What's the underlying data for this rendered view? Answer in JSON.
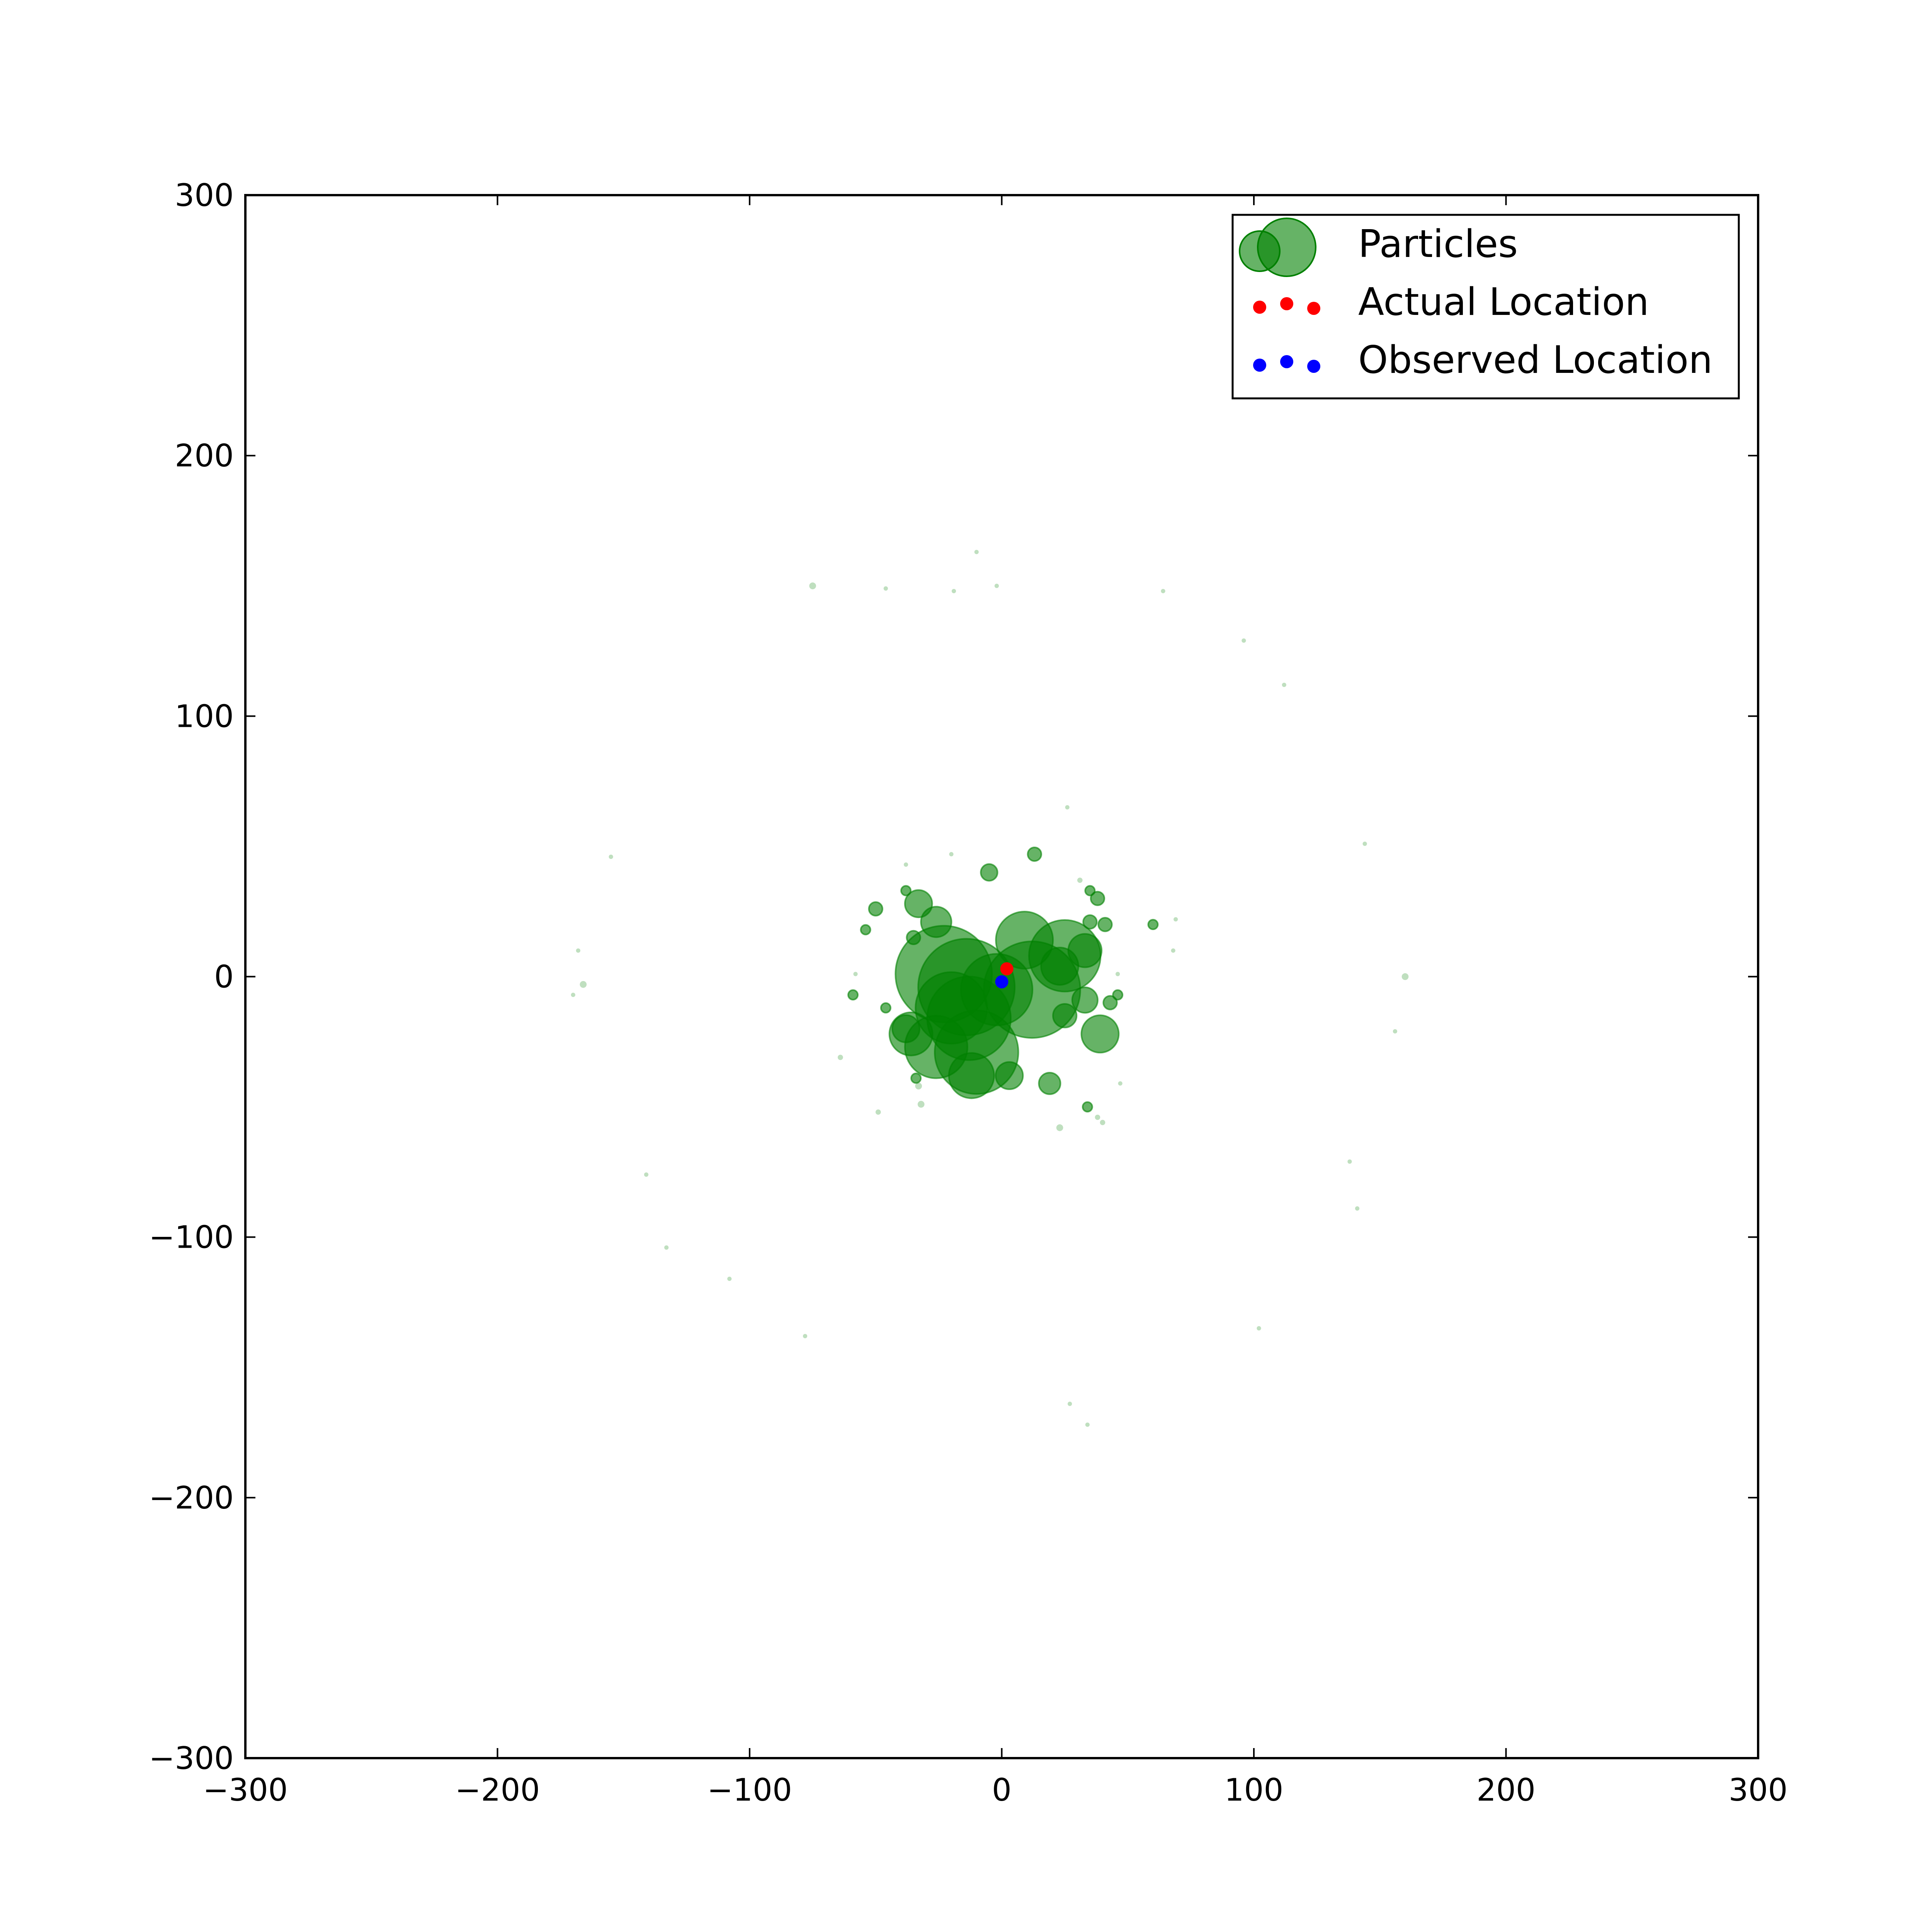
{
  "chart_data": {
    "type": "scatter",
    "title": "",
    "xlabel": "",
    "ylabel": "",
    "xlim": [
      -300,
      300
    ],
    "ylim": [
      -300,
      300
    ],
    "grid": false,
    "legend_position": "top-right",
    "x_ticks": [
      {
        "value": -300,
        "label": "−300"
      },
      {
        "value": -200,
        "label": "−200"
      },
      {
        "value": -100,
        "label": "−100"
      },
      {
        "value": 0,
        "label": "0"
      },
      {
        "value": 100,
        "label": "100"
      },
      {
        "value": 200,
        "label": "200"
      },
      {
        "value": 300,
        "label": "300"
      }
    ],
    "y_ticks": [
      {
        "value": -300,
        "label": "−300"
      },
      {
        "value": -200,
        "label": "−200"
      },
      {
        "value": -100,
        "label": "−100"
      },
      {
        "value": 0,
        "label": "0"
      },
      {
        "value": 100,
        "label": "100"
      },
      {
        "value": 200,
        "label": "200"
      },
      {
        "value": 300,
        "label": "300"
      }
    ],
    "series": [
      {
        "name": "Particles",
        "color": "#008000",
        "alpha": 0.6,
        "points": [
          {
            "x": -23,
            "y": 1,
            "w": 1.0
          },
          {
            "x": -14,
            "y": -4,
            "w": 1.0
          },
          {
            "x": 12,
            "y": -5,
            "w": 1.0
          },
          {
            "x": -13,
            "y": -16,
            "w": 0.75
          },
          {
            "x": -20,
            "y": -12,
            "w": 0.55
          },
          {
            "x": -10,
            "y": -29,
            "w": 0.75
          },
          {
            "x": -2,
            "y": -5,
            "w": 0.55
          },
          {
            "x": 25,
            "y": 8,
            "w": 0.55
          },
          {
            "x": -26,
            "y": -27,
            "w": 0.42
          },
          {
            "x": 9,
            "y": 14,
            "w": 0.35
          },
          {
            "x": -36,
            "y": -22,
            "w": 0.2
          },
          {
            "x": -12,
            "y": -38,
            "w": 0.22
          },
          {
            "x": 39,
            "y": -22,
            "w": 0.15
          },
          {
            "x": 23,
            "y": 4,
            "w": 0.15
          },
          {
            "x": 33,
            "y": 10,
            "w": 0.12
          },
          {
            "x": -26,
            "y": 21,
            "w": 0.1
          },
          {
            "x": -33,
            "y": 28,
            "w": 0.08
          },
          {
            "x": -38,
            "y": -20,
            "w": 0.08
          },
          {
            "x": 3,
            "y": -38,
            "w": 0.08
          },
          {
            "x": 33,
            "y": -9,
            "w": 0.07
          },
          {
            "x": 25,
            "y": -15,
            "w": 0.06
          },
          {
            "x": 19,
            "y": -41,
            "w": 0.05
          },
          {
            "x": -5,
            "y": 40,
            "w": 0.03
          },
          {
            "x": 13,
            "y": 47,
            "w": 0.02
          },
          {
            "x": -50,
            "y": 26,
            "w": 0.02
          },
          {
            "x": -35,
            "y": 15,
            "w": 0.02
          },
          {
            "x": -38,
            "y": 33,
            "w": 0.01
          },
          {
            "x": 38,
            "y": 30,
            "w": 0.02
          },
          {
            "x": 35,
            "y": 33,
            "w": 0.01
          },
          {
            "x": 41,
            "y": 20,
            "w": 0.02
          },
          {
            "x": 35,
            "y": 21,
            "w": 0.02
          },
          {
            "x": 43,
            "y": -10,
            "w": 0.02
          },
          {
            "x": 46,
            "y": -7,
            "w": 0.01
          },
          {
            "x": 60,
            "y": 20,
            "w": 0.01
          },
          {
            "x": -54,
            "y": 18,
            "w": 0.01
          },
          {
            "x": -59,
            "y": -7,
            "w": 0.01
          },
          {
            "x": -46,
            "y": -12,
            "w": 0.01
          },
          {
            "x": -34,
            "y": -39,
            "w": 0.01
          },
          {
            "x": -75,
            "y": 150,
            "w": 0.005
          },
          {
            "x": -166,
            "y": -3,
            "w": 0.005
          },
          {
            "x": 160,
            "y": 0,
            "w": 0.005
          },
          {
            "x": 34,
            "y": -50,
            "w": 0.01
          },
          {
            "x": 23,
            "y": -58,
            "w": 0.005
          },
          {
            "x": -33,
            "y": -42,
            "w": 0.005
          },
          {
            "x": -32,
            "y": -49,
            "w": 0.005
          },
          {
            "x": -64,
            "y": -31,
            "w": 0.003
          },
          {
            "x": -49,
            "y": -52,
            "w": 0.003
          },
          {
            "x": 38,
            "y": -54,
            "w": 0.003
          },
          {
            "x": 40,
            "y": -56,
            "w": 0.003
          },
          {
            "x": 47,
            "y": -41,
            "w": 0.002
          },
          {
            "x": 31,
            "y": 37,
            "w": 0.003
          },
          {
            "x": 26,
            "y": 65,
            "w": 0.002
          },
          {
            "x": -38,
            "y": 43,
            "w": 0.002
          },
          {
            "x": -20,
            "y": 47,
            "w": 0.002
          },
          {
            "x": 69,
            "y": 22,
            "w": 0.002
          },
          {
            "x": 68,
            "y": 10,
            "w": 0.002
          },
          {
            "x": 46,
            "y": 1,
            "w": 0.002
          },
          {
            "x": -58,
            "y": 1,
            "w": 0.002
          },
          {
            "x": -168,
            "y": 10,
            "w": 0.002
          },
          {
            "x": -170,
            "y": -7,
            "w": 0.002
          },
          {
            "x": -155,
            "y": 46,
            "w": 0.002
          },
          {
            "x": 144,
            "y": 51,
            "w": 0.002
          },
          {
            "x": 156,
            "y": -21,
            "w": 0.002
          },
          {
            "x": 138,
            "y": -71,
            "w": 0.002
          },
          {
            "x": 141,
            "y": -89,
            "w": 0.002
          },
          {
            "x": -141,
            "y": -76,
            "w": 0.002
          },
          {
            "x": -133,
            "y": -104,
            "w": 0.002
          },
          {
            "x": -108,
            "y": -116,
            "w": 0.002
          },
          {
            "x": -78,
            "y": -138,
            "w": 0.002
          },
          {
            "x": 102,
            "y": -135,
            "w": 0.002
          },
          {
            "x": 27,
            "y": -164,
            "w": 0.002
          },
          {
            "x": 34,
            "y": -172,
            "w": 0.002
          },
          {
            "x": 112,
            "y": 112,
            "w": 0.002
          },
          {
            "x": 96,
            "y": 129,
            "w": 0.002
          },
          {
            "x": 64,
            "y": 148,
            "w": 0.002
          },
          {
            "x": -19,
            "y": 148,
            "w": 0.002
          },
          {
            "x": -10,
            "y": 163,
            "w": 0.002
          },
          {
            "x": -2,
            "y": 150,
            "w": 0.002
          },
          {
            "x": -46,
            "y": 149,
            "w": 0.002
          }
        ]
      },
      {
        "name": "Actual Location",
        "color": "#ff0000",
        "points": [
          {
            "x": 2,
            "y": 3
          }
        ]
      },
      {
        "name": "Observed Location",
        "color": "#0000ff",
        "points": [
          {
            "x": 0,
            "y": -2
          }
        ]
      }
    ]
  }
}
